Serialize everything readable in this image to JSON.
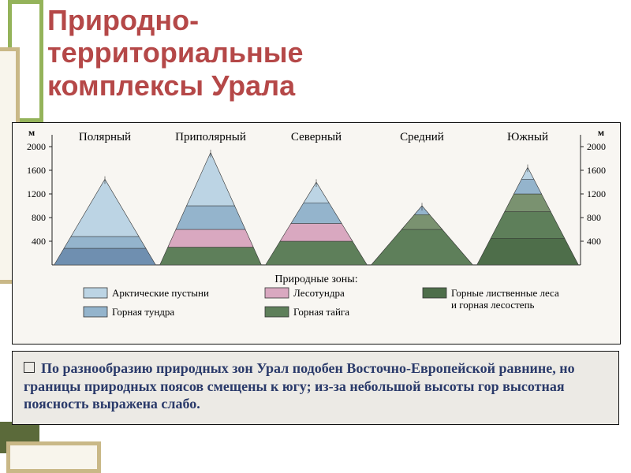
{
  "title": {
    "line1": "Природно-",
    "line2": "территориальные",
    "line3": "комплексы Урала",
    "color": "#b54848",
    "fontsize": 36
  },
  "decor": {
    "green_frame": "#94b35a",
    "tan_frame": "#c9b887",
    "dark_bar": "#5b6a3a"
  },
  "chart": {
    "type": "area",
    "background": "#f8f6f2",
    "ylim": [
      0,
      2000
    ],
    "yticks": [
      400,
      800,
      1200,
      1600,
      2000
    ],
    "ytick_labels": [
      "400",
      "800",
      "1200",
      "1600",
      "2000"
    ],
    "sections": [
      {
        "name": "Полярный",
        "peak": 1450,
        "bands": [
          {
            "from": 0,
            "to": 280,
            "color": "#6f8fb0"
          },
          {
            "from": 280,
            "to": 480,
            "color": "#94b4cc"
          },
          {
            "from": 480,
            "to": 1450,
            "color": "#bcd4e4"
          }
        ]
      },
      {
        "name": "Приполярный",
        "peak": 1900,
        "bands": [
          {
            "from": 0,
            "to": 300,
            "color": "#5e7f5a"
          },
          {
            "from": 300,
            "to": 600,
            "color": "#d9a8c0"
          },
          {
            "from": 600,
            "to": 1000,
            "color": "#94b4cc"
          },
          {
            "from": 1000,
            "to": 1900,
            "color": "#bcd4e4"
          }
        ]
      },
      {
        "name": "Северный",
        "peak": 1400,
        "bands": [
          {
            "from": 0,
            "to": 400,
            "color": "#5e7f5a"
          },
          {
            "from": 400,
            "to": 700,
            "color": "#d9a8c0"
          },
          {
            "from": 700,
            "to": 1050,
            "color": "#94b4cc"
          },
          {
            "from": 1050,
            "to": 1400,
            "color": "#bcd4e4"
          }
        ]
      },
      {
        "name": "Средний",
        "peak": 1000,
        "bands": [
          {
            "from": 0,
            "to": 600,
            "color": "#5e7f5a"
          },
          {
            "from": 600,
            "to": 850,
            "color": "#7a9270"
          },
          {
            "from": 850,
            "to": 1000,
            "color": "#94b4cc"
          }
        ]
      },
      {
        "name": "Южный",
        "peak": 1650,
        "bands": [
          {
            "from": 0,
            "to": 450,
            "color": "#4e6e4a"
          },
          {
            "from": 450,
            "to": 900,
            "color": "#5e7f5a"
          },
          {
            "from": 900,
            "to": 1200,
            "color": "#7a9270"
          },
          {
            "from": 1200,
            "to": 1450,
            "color": "#94b4cc"
          },
          {
            "from": 1450,
            "to": 1650,
            "color": "#bcd4e4"
          }
        ]
      }
    ],
    "legend_title": "Природные зоны:",
    "legend": [
      {
        "color": "#bcd4e4",
        "label": "Арктические пустыни"
      },
      {
        "color": "#94b4cc",
        "label": "Горная тундра"
      },
      {
        "color": "#d9a8c0",
        "label": "Лесотундра"
      },
      {
        "color": "#5e7f5a",
        "label": "Горная тайга"
      },
      {
        "color": "#4e6e4a",
        "label": "Горные лиственные леса и горная лесостепь"
      }
    ]
  },
  "bottom_text": {
    "color": "#2a3a6a",
    "text": "По разнообразию природных зон Урал подобен Восточно-Европейской равнине, но границы природных поясов смещены к югу; из-за небольшой высоты гор высотная поясность выражена слабо."
  }
}
